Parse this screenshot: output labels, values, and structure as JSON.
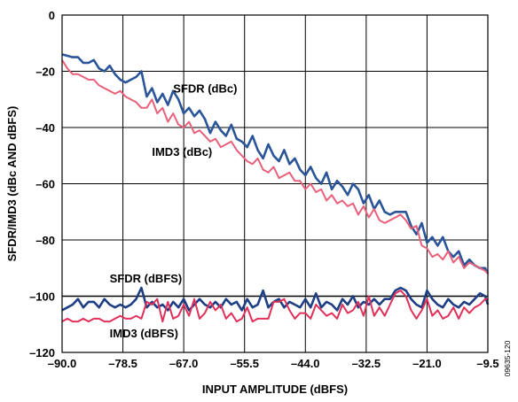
{
  "chart_data": {
    "type": "line",
    "xlabel": "INPUT AMPLITUDE (dBFS)",
    "ylabel": "SFDR/IMD3 (dBc AND dBFS)",
    "xlim": [
      -90,
      -9.5
    ],
    "ylim": [
      -120,
      0
    ],
    "x_ticks": [
      "–90.0",
      "–78.5",
      "–67.0",
      "–55.5",
      "–44.0",
      "–32.5",
      "–21.0",
      "–9.5"
    ],
    "y_ticks": [
      "0",
      "–20",
      "–40",
      "–60",
      "–80",
      "–100",
      "–120"
    ],
    "x_tick_values": [
      -90,
      -78.5,
      -67,
      -55.5,
      -44,
      -32.5,
      -21,
      -9.5
    ],
    "y_tick_values": [
      0,
      -20,
      -40,
      -60,
      -80,
      -100,
      -120
    ],
    "grid": true,
    "reference_line_y": -100,
    "annotations": [
      {
        "text": "SFDR (dBc)",
        "x": -69,
        "y": -26
      },
      {
        "text": "IMD3 (dBc)",
        "x": -73,
        "y": -48.5
      },
      {
        "text": "SFDR (dBFS)",
        "x": -81,
        "y": -93.5
      },
      {
        "text": "IMD3 (dBFS)",
        "x": -81,
        "y": -113
      }
    ],
    "figure_id": "09635-120",
    "series": [
      {
        "name": "SFDR (dBc)",
        "color": "#2a5599",
        "x": [
          -90,
          -88,
          -87,
          -86,
          -85,
          -84,
          -83,
          -82,
          -81,
          -80,
          -79,
          -78,
          -77,
          -76,
          -75,
          -74,
          -73,
          -72,
          -71,
          -70,
          -69,
          -68,
          -67,
          -66,
          -65,
          -64,
          -63,
          -62,
          -61,
          -60,
          -59,
          -58,
          -57,
          -56,
          -55,
          -54,
          -53,
          -52,
          -51,
          -50,
          -49,
          -48,
          -47,
          -46,
          -45,
          -44,
          -43,
          -42,
          -41,
          -40,
          -39,
          -38,
          -37,
          -36,
          -35,
          -34,
          -33,
          -32,
          -31,
          -30,
          -29,
          -28,
          -27,
          -26,
          -25,
          -24,
          -23,
          -22,
          -21,
          -20,
          -19,
          -18,
          -17,
          -16,
          -15,
          -14,
          -13,
          -12,
          -11,
          -10,
          -9.5
        ],
        "values": [
          -14,
          -15,
          -15,
          -17,
          -17,
          -16,
          -19,
          -20,
          -18,
          -21,
          -23,
          -24,
          -23,
          -22,
          -20,
          -29,
          -26,
          -31,
          -28,
          -32,
          -27,
          -30,
          -35,
          -33,
          -36,
          -34,
          -37,
          -42,
          -38,
          -41,
          -43,
          -39,
          -44,
          -45,
          -47,
          -43,
          -48,
          -51,
          -46,
          -50,
          -52,
          -48,
          -53,
          -51,
          -55,
          -57,
          -54,
          -58,
          -60,
          -56,
          -62,
          -59,
          -61,
          -64,
          -60,
          -62,
          -67,
          -64,
          -69,
          -66,
          -70,
          -71,
          -70,
          -70,
          -70,
          -75,
          -78,
          -74,
          -81,
          -79,
          -82,
          -79,
          -84,
          -86,
          -84,
          -89,
          -87,
          -89,
          -90,
          -90,
          -92
        ]
      },
      {
        "name": "IMD3 (dBc)",
        "color": "#e8607a",
        "x": [
          -90,
          -89,
          -88,
          -87,
          -86,
          -85,
          -84,
          -83,
          -82,
          -81,
          -80,
          -79,
          -78,
          -77,
          -76,
          -75,
          -74,
          -73,
          -72,
          -71,
          -70,
          -69,
          -68,
          -67,
          -66,
          -65,
          -64,
          -63,
          -62,
          -61,
          -60,
          -59,
          -58,
          -57,
          -56,
          -55,
          -54,
          -53,
          -52,
          -51,
          -50,
          -49,
          -48,
          -47,
          -46,
          -45,
          -44,
          -43,
          -42,
          -41,
          -40,
          -39,
          -38,
          -37,
          -36,
          -35,
          -34,
          -33,
          -32,
          -31,
          -30,
          -29,
          -28,
          -27,
          -26,
          -25,
          -24,
          -23,
          -22,
          -21,
          -20,
          -19,
          -18,
          -17,
          -16,
          -15,
          -14,
          -13,
          -12,
          -11,
          -10,
          -9.5
        ],
        "values": [
          -16,
          -19,
          -21,
          -21,
          -22,
          -23,
          -23,
          -25,
          -26,
          -27,
          -28,
          -27,
          -29,
          -30,
          -31,
          -33,
          -33,
          -30,
          -35,
          -33,
          -38,
          -35,
          -39,
          -40,
          -38,
          -42,
          -41,
          -43,
          -45,
          -44,
          -47,
          -46,
          -45,
          -48,
          -50,
          -52,
          -53,
          -51,
          -55,
          -56,
          -54,
          -58,
          -57,
          -56,
          -59,
          -59,
          -62,
          -60,
          -63,
          -62,
          -66,
          -64,
          -67,
          -66,
          -68,
          -67,
          -71,
          -68,
          -72,
          -69,
          -73,
          -74,
          -73,
          -72,
          -71,
          -73,
          -76,
          -75,
          -82,
          -83,
          -86,
          -85,
          -87,
          -84,
          -88,
          -86,
          -90,
          -88,
          -89,
          -90,
          -91,
          -92
        ]
      },
      {
        "name": "SFDR (dBFS)",
        "color": "#1f3f85",
        "x": [
          -90,
          -89,
          -88,
          -87,
          -86,
          -85,
          -84,
          -83,
          -82,
          -81,
          -80,
          -79,
          -78,
          -77,
          -76,
          -75,
          -74,
          -73,
          -72,
          -71,
          -70,
          -69,
          -68,
          -67,
          -66,
          -65,
          -64,
          -63,
          -62,
          -61,
          -60,
          -59,
          -58,
          -57,
          -56,
          -55,
          -54,
          -53,
          -52,
          -51,
          -50,
          -49,
          -48,
          -47,
          -46,
          -45,
          -44,
          -43,
          -42,
          -41,
          -40,
          -39,
          -38,
          -37,
          -36,
          -35,
          -34,
          -33,
          -32,
          -31,
          -30,
          -29,
          -28,
          -27,
          -26,
          -25,
          -24,
          -23,
          -22,
          -21,
          -20,
          -19,
          -18,
          -17,
          -16,
          -15,
          -14,
          -13,
          -12,
          -11,
          -10,
          -9.5
        ],
        "values": [
          -105,
          -104,
          -103,
          -101,
          -104,
          -102,
          -102,
          -104,
          -101,
          -103,
          -104,
          -103,
          -104,
          -103,
          -101,
          -97,
          -104,
          -102,
          -104,
          -103,
          -105,
          -102,
          -104,
          -101,
          -105,
          -103,
          -101,
          -103,
          -104,
          -102,
          -104,
          -101,
          -103,
          -102,
          -105,
          -101,
          -104,
          -103,
          -98,
          -104,
          -102,
          -101,
          -104,
          -102,
          -103,
          -104,
          -101,
          -104,
          -99,
          -104,
          -102,
          -103,
          -105,
          -101,
          -103,
          -100,
          -104,
          -102,
          -103,
          -101,
          -103,
          -101,
          -101,
          -98,
          -97,
          -98,
          -101,
          -103,
          -104,
          -98,
          -101,
          -103,
          -104,
          -101,
          -103,
          -104,
          -102,
          -103,
          -101,
          -99,
          -100,
          -103
        ]
      },
      {
        "name": "IMD3 (dBFS)",
        "color": "#e0305a",
        "x": [
          -90,
          -89,
          -88,
          -87,
          -86,
          -85,
          -84,
          -83,
          -82,
          -81,
          -80,
          -79,
          -78,
          -77,
          -76,
          -75,
          -74,
          -73,
          -72,
          -71,
          -70,
          -69,
          -68,
          -67,
          -66,
          -65,
          -64,
          -63,
          -62,
          -61,
          -60,
          -59,
          -58,
          -57,
          -56,
          -55,
          -54,
          -53,
          -52,
          -51,
          -50,
          -49,
          -48,
          -47,
          -46,
          -45,
          -44,
          -43,
          -42,
          -41,
          -40,
          -39,
          -38,
          -37,
          -36,
          -35,
          -34,
          -33,
          -32,
          -31,
          -30,
          -29,
          -28,
          -27,
          -26,
          -25,
          -24,
          -23,
          -22,
          -21,
          -20,
          -19,
          -18,
          -17,
          -16,
          -15,
          -14,
          -13,
          -12,
          -11,
          -10,
          -9.5
        ],
        "values": [
          -109,
          -108,
          -109,
          -109,
          -108,
          -109,
          -108,
          -108,
          -109,
          -109,
          -108,
          -107,
          -108,
          -108,
          -107,
          -108,
          -102,
          -103,
          -101,
          -109,
          -102,
          -108,
          -107,
          -103,
          -107,
          -101,
          -108,
          -106,
          -102,
          -105,
          -103,
          -108,
          -106,
          -109,
          -108,
          -104,
          -109,
          -108,
          -108,
          -108,
          -102,
          -102,
          -101,
          -105,
          -108,
          -106,
          -106,
          -108,
          -103,
          -105,
          -107,
          -106,
          -108,
          -103,
          -106,
          -105,
          -102,
          -107,
          -100,
          -107,
          -104,
          -107,
          -103,
          -99,
          -98,
          -100,
          -105,
          -108,
          -105,
          -101,
          -107,
          -105,
          -108,
          -107,
          -104,
          -108,
          -104,
          -106,
          -104,
          -103,
          -101,
          -101
        ]
      }
    ]
  }
}
